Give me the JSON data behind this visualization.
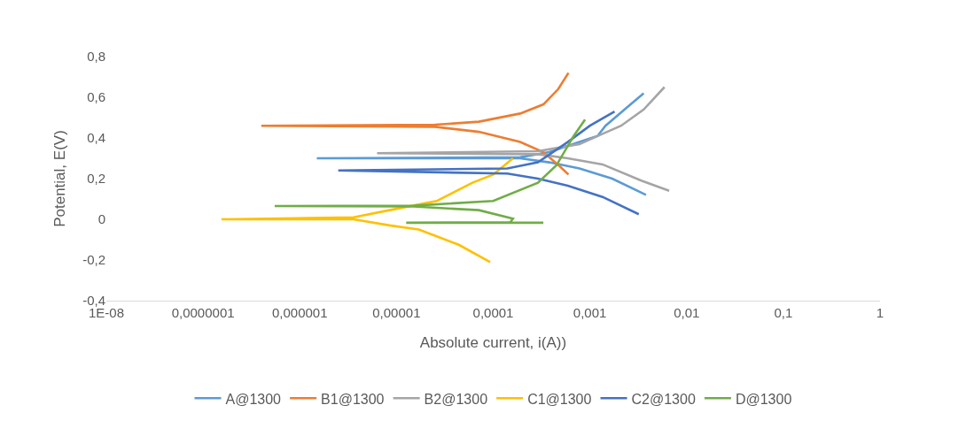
{
  "chart_data": {
    "type": "line",
    "xlabel": "Absolute current, i(A))",
    "ylabel": "Potential, E(V)",
    "log": "x",
    "xlim": [
      1e-08,
      1
    ],
    "ylim": [
      -0.4,
      0.8
    ],
    "xticks": [
      {
        "value": 1e-08,
        "label": "1E-08"
      },
      {
        "value": 1e-07,
        "label": "0,0000001"
      },
      {
        "value": 1e-06,
        "label": "0,000001"
      },
      {
        "value": 1e-05,
        "label": "0,00001"
      },
      {
        "value": 0.0001,
        "label": "0,0001"
      },
      {
        "value": 0.001,
        "label": "0,001"
      },
      {
        "value": 0.01,
        "label": "0,01"
      },
      {
        "value": 0.1,
        "label": "0,1"
      },
      {
        "value": 1,
        "label": "1"
      }
    ],
    "yticks": [
      {
        "value": -0.4,
        "label": "-0,4"
      },
      {
        "value": -0.2,
        "label": "-0,2"
      },
      0,
      {
        "value": 0.2,
        "label": "0,2"
      },
      {
        "value": 0.4,
        "label": "0,4"
      },
      {
        "value": 0.6,
        "label": "0,6"
      },
      {
        "value": 0.8,
        "label": "0,8"
      }
    ],
    "grid": false,
    "legend": "bottom",
    "marker": "none",
    "line_style": "solid",
    "series": [
      {
        "name": "A@1300",
        "color": "#5b9bd5",
        "x": [
          0.0038,
          0.0017,
          0.00078,
          0.00038,
          0.00019,
          1.5e-06,
          0.00019,
          0.00038,
          0.00078,
          0.0012,
          0.00145,
          0.0027,
          0.0036
        ],
        "values": [
          0.12,
          0.2,
          0.25,
          0.28,
          0.3,
          0.3,
          0.305,
          0.33,
          0.38,
          0.41,
          0.46,
          0.57,
          0.62
        ]
      },
      {
        "name": "B1@1300",
        "color": "#ed7d31",
        "x": [
          0.0006,
          0.00049,
          0.00033,
          0.00019,
          7.1e-05,
          2.5e-05,
          4e-07,
          2.5e-05,
          7.1e-05,
          0.00019,
          0.00033,
          0.00047,
          0.0006
        ],
        "values": [
          0.22,
          0.26,
          0.33,
          0.38,
          0.43,
          0.455,
          0.46,
          0.465,
          0.48,
          0.52,
          0.565,
          0.64,
          0.72
        ]
      },
      {
        "name": "B2@1300",
        "color": "#a5a5a5",
        "x": [
          0.0066,
          0.0034,
          0.00135,
          0.00059,
          0.00029,
          6.3e-06,
          0.00029,
          0.00078,
          0.00135,
          0.0021,
          0.0036,
          0.0059
        ],
        "values": [
          0.14,
          0.19,
          0.27,
          0.3,
          0.32,
          0.325,
          0.335,
          0.37,
          0.42,
          0.46,
          0.54,
          0.65
        ]
      },
      {
        "name": "C1@1300",
        "color": "#ffc000",
        "x": [
          9.3e-05,
          4.4e-05,
          1.7e-05,
          8.5e-06,
          3.6e-06,
          1.55e-07,
          3.6e-06,
          8.5e-06,
          2.6e-05,
          4e-05,
          6.1e-05,
          0.0001,
          0.00016
        ],
        "values": [
          -0.21,
          -0.125,
          -0.05,
          -0.03,
          0,
          0,
          0.01,
          0.045,
          0.09,
          0.135,
          0.18,
          0.22,
          0.3
        ]
      },
      {
        "name": "C2@1300",
        "color": "#4472c4",
        "x": [
          0.0032,
          0.00135,
          0.00059,
          0.00029,
          0.00014,
          2.5e-06,
          0.00014,
          0.00029,
          0.00059,
          0.001,
          0.0018
        ],
        "values": [
          0.025,
          0.11,
          0.165,
          0.2,
          0.225,
          0.24,
          0.25,
          0.28,
          0.38,
          0.46,
          0.53
        ]
      },
      {
        "name": "D@1300",
        "color": "#70ad47",
        "x": [
          0.00033,
          1.26e-05,
          0.00015,
          0.00016,
          7.1e-05,
          1.5e-05,
          5.5e-07,
          1.5e-05,
          0.0001,
          0.00029,
          0.00045,
          0.00068,
          0.00089
        ],
        "values": [
          -0.017,
          -0.017,
          -0.014,
          0.003,
          0.045,
          0.063,
          0.065,
          0.067,
          0.09,
          0.18,
          0.265,
          0.41,
          0.49
        ]
      }
    ]
  }
}
